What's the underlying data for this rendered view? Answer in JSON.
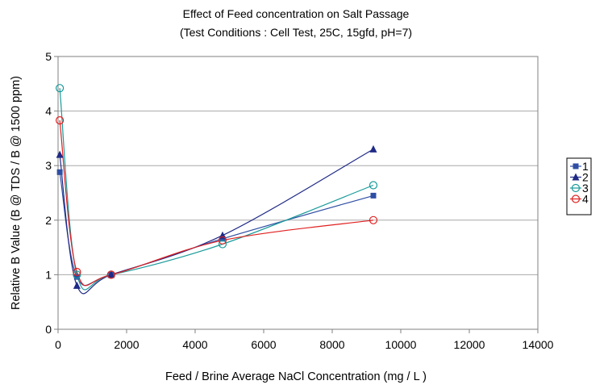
{
  "chart_data": {
    "type": "line",
    "title": "Effect of Feed concentration on  Salt Passage",
    "subtitle": "(Test Conditions : Cell Test, 25C, 15gfd, pH=7)",
    "xlabel": "Feed / Brine Average NaCl Concentration (mg / L )",
    "ylabel": "Relative B Value (B @ TDS / B @ 1500 ppm)",
    "xlim": [
      0,
      14000
    ],
    "ylim": [
      0,
      5
    ],
    "xticks": [
      0,
      2000,
      4000,
      6000,
      8000,
      10000,
      12000,
      14000
    ],
    "yticks": [
      0,
      1,
      2,
      3,
      4,
      5
    ],
    "grid": "horizontal",
    "legend_position": "right",
    "series": [
      {
        "name": "1",
        "color": "#2f4ea3",
        "marker": "square",
        "x": [
          50,
          550,
          1550,
          4800,
          9200
        ],
        "y": [
          2.88,
          0.96,
          1.0,
          1.66,
          2.45
        ]
      },
      {
        "name": "2",
        "color": "#1f2a86",
        "marker": "triangle",
        "x": [
          50,
          550,
          1550,
          4800,
          9200
        ],
        "y": [
          3.2,
          0.8,
          1.0,
          1.72,
          3.3
        ]
      },
      {
        "name": "3",
        "color": "#1a9a9a",
        "marker": "circle-open",
        "x": [
          50,
          550,
          1550,
          4800,
          9200
        ],
        "y": [
          4.42,
          1.0,
          1.0,
          1.56,
          2.64
        ]
      },
      {
        "name": "4",
        "color": "#e02020",
        "marker": "circle-open",
        "x": [
          50,
          550,
          1550,
          4800,
          9200
        ],
        "y": [
          3.83,
          1.05,
          1.0,
          1.63,
          2.0
        ]
      }
    ]
  }
}
